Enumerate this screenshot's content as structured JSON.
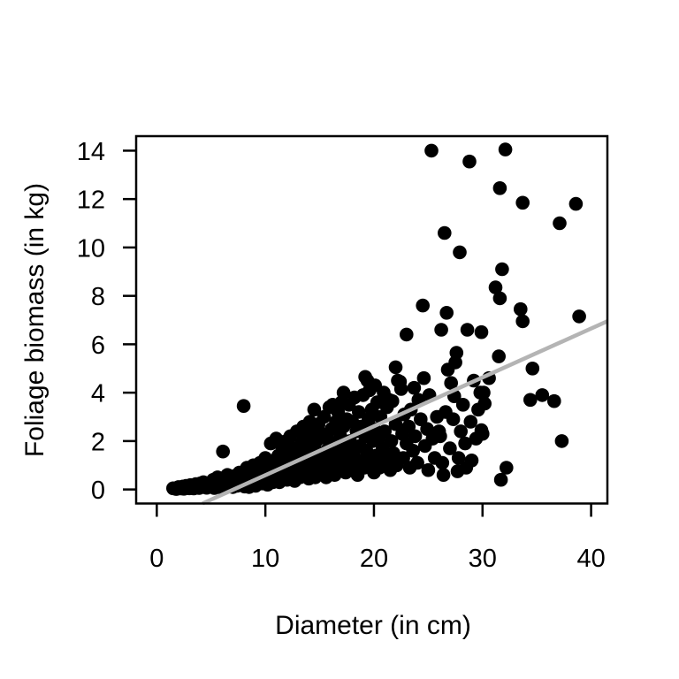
{
  "figure": {
    "background": "#ffffff"
  },
  "chart_data": {
    "type": "scatter",
    "title": "",
    "xlabel": "Diameter (in cm)",
    "ylabel": "Foliage biomass (in kg)",
    "x_ticks": [
      0,
      10,
      20,
      30,
      40
    ],
    "y_ticks": [
      0,
      2,
      4,
      6,
      8,
      10,
      12,
      14
    ],
    "xlim": [
      -1.9,
      41.5
    ],
    "ylim": [
      -0.58,
      14.6
    ],
    "grid": "off",
    "legend": "none",
    "point_color": "#000000",
    "axis_color": "#000000",
    "trend_line": {
      "slope": 0.202,
      "intercept": -1.43,
      "color": "#b4b4b4"
    },
    "points": [
      [
        1.5,
        0.05
      ],
      [
        1.8,
        0.02
      ],
      [
        2.0,
        0.1
      ],
      [
        2.2,
        0.04
      ],
      [
        2.4,
        0.12
      ],
      [
        2.5,
        0.03
      ],
      [
        2.7,
        0.15
      ],
      [
        2.8,
        0.07
      ],
      [
        3.0,
        0.05
      ],
      [
        3.1,
        0.18
      ],
      [
        3.3,
        0.1
      ],
      [
        3.4,
        0.04
      ],
      [
        3.6,
        0.22
      ],
      [
        3.7,
        0.12
      ],
      [
        3.9,
        0.06
      ],
      [
        4.0,
        0.25
      ],
      [
        4.2,
        0.1
      ],
      [
        4.3,
        0.3
      ],
      [
        4.5,
        0.15
      ],
      [
        4.6,
        0.07
      ],
      [
        4.8,
        0.2
      ],
      [
        5.0,
        0.3
      ],
      [
        5.1,
        0.12
      ],
      [
        5.2,
        0.4
      ],
      [
        5.3,
        0.06
      ],
      [
        5.5,
        0.25
      ],
      [
        5.6,
        0.5
      ],
      [
        5.7,
        0.1
      ],
      [
        5.9,
        0.35
      ],
      [
        6.0,
        0.15
      ],
      [
        6.1,
        1.57
      ],
      [
        6.2,
        0.45
      ],
      [
        6.3,
        0.08
      ],
      [
        6.4,
        0.3
      ],
      [
        6.5,
        0.6
      ],
      [
        6.7,
        0.2
      ],
      [
        6.8,
        0.4
      ],
      [
        7.0,
        0.1
      ],
      [
        7.1,
        0.55
      ],
      [
        7.2,
        0.3
      ],
      [
        7.4,
        0.15
      ],
      [
        7.5,
        0.45
      ],
      [
        7.6,
        0.7
      ],
      [
        7.8,
        0.25
      ],
      [
        7.9,
        0.5
      ],
      [
        8.0,
        3.45
      ],
      [
        8.0,
        0.35
      ],
      [
        8.1,
        0.12
      ],
      [
        8.2,
        0.6
      ],
      [
        8.3,
        0.2
      ],
      [
        8.3,
        0.9
      ],
      [
        8.4,
        0.4
      ],
      [
        8.5,
        0.1
      ],
      [
        8.6,
        0.7
      ],
      [
        8.8,
        0.3
      ],
      [
        8.9,
        1.0
      ],
      [
        9.0,
        0.5
      ],
      [
        9.1,
        0.15
      ],
      [
        9.2,
        0.8
      ],
      [
        9.3,
        0.35
      ],
      [
        9.5,
        1.1
      ],
      [
        9.6,
        0.6
      ],
      [
        9.7,
        0.25
      ],
      [
        9.8,
        0.9
      ],
      [
        9.9,
        0.45
      ],
      [
        10.0,
        1.3
      ],
      [
        10.1,
        0.7
      ],
      [
        10.2,
        0.2
      ],
      [
        10.3,
        1.0
      ],
      [
        10.4,
        0.5
      ],
      [
        10.5,
        1.9
      ],
      [
        10.6,
        0.8
      ],
      [
        10.7,
        0.3
      ],
      [
        10.8,
        1.2
      ],
      [
        10.9,
        0.6
      ],
      [
        11.0,
        2.1
      ],
      [
        11.0,
        0.9
      ],
      [
        11.0,
        0.4
      ],
      [
        11.1,
        0.7
      ],
      [
        11.2,
        1.4
      ],
      [
        11.3,
        0.3
      ],
      [
        11.4,
        1.0
      ],
      [
        11.5,
        1.8
      ],
      [
        11.6,
        0.5
      ],
      [
        11.7,
        1.2
      ],
      [
        11.8,
        0.8
      ],
      [
        11.9,
        2.0
      ],
      [
        12.0,
        0.4
      ],
      [
        12.1,
        1.5
      ],
      [
        12.2,
        0.9
      ],
      [
        12.3,
        2.2
      ],
      [
        12.4,
        0.6
      ],
      [
        12.5,
        1.1
      ],
      [
        12.6,
        1.7
      ],
      [
        12.7,
        0.35
      ],
      [
        12.8,
        1.3
      ],
      [
        12.9,
        2.4
      ],
      [
        13.0,
        0.8
      ],
      [
        13.1,
        1.6
      ],
      [
        13.2,
        0.5
      ],
      [
        13.3,
        1.9
      ],
      [
        13.4,
        1.0
      ],
      [
        13.5,
        2.6
      ],
      [
        13.6,
        0.7
      ],
      [
        13.7,
        1.4
      ],
      [
        13.8,
        2.1
      ],
      [
        13.9,
        0.9
      ],
      [
        14.0,
        1.7
      ],
      [
        14.0,
        0.45
      ],
      [
        14.1,
        2.8
      ],
      [
        14.1,
        1.2
      ],
      [
        14.2,
        2.3
      ],
      [
        14.3,
        0.8
      ],
      [
        14.4,
        1.6
      ],
      [
        14.5,
        3.3
      ],
      [
        14.6,
        0.5
      ],
      [
        14.7,
        2.0
      ],
      [
        14.8,
        1.1
      ],
      [
        14.9,
        2.7
      ],
      [
        15.0,
        0.7
      ],
      [
        15.1,
        1.5
      ],
      [
        15.2,
        2.3
      ],
      [
        15.3,
        0.9
      ],
      [
        15.4,
        3.0
      ],
      [
        15.5,
        1.3
      ],
      [
        15.6,
        0.5
      ],
      [
        15.7,
        2.1
      ],
      [
        15.8,
        1.7
      ],
      [
        15.9,
        3.4
      ],
      [
        16.0,
        0.8
      ],
      [
        16.1,
        2.5
      ],
      [
        16.1,
        1.2
      ],
      [
        16.2,
        3.5
      ],
      [
        16.3,
        1.9
      ],
      [
        16.4,
        0.6
      ],
      [
        16.5,
        2.8
      ],
      [
        16.6,
        1.4
      ],
      [
        16.7,
        3.2
      ],
      [
        16.8,
        0.9
      ],
      [
        16.9,
        2.2
      ],
      [
        17.0,
        1.6
      ],
      [
        17.0,
        3.6
      ],
      [
        17.1,
        1.0
      ],
      [
        17.2,
        2.6
      ],
      [
        17.2,
        4.0
      ],
      [
        17.3,
        1.8
      ],
      [
        17.4,
        0.7
      ],
      [
        17.5,
        2.9
      ],
      [
        17.6,
        1.3
      ],
      [
        17.7,
        3.5
      ],
      [
        17.8,
        2.0
      ],
      [
        17.9,
        0.8
      ],
      [
        18.0,
        2.8
      ],
      [
        18.1,
        1.5
      ],
      [
        18.2,
        3.8
      ],
      [
        18.3,
        1.0
      ],
      [
        18.4,
        2.4
      ],
      [
        18.5,
        0.6
      ],
      [
        18.6,
        3.2
      ],
      [
        18.7,
        1.8
      ],
      [
        18.8,
        2.6
      ],
      [
        18.9,
        1.2
      ],
      [
        19.0,
        3.9
      ],
      [
        19.1,
        0.9
      ],
      [
        19.2,
        4.65
      ],
      [
        19.2,
        2.2
      ],
      [
        19.3,
        1.6
      ],
      [
        19.4,
        4.5
      ],
      [
        19.5,
        2.9
      ],
      [
        19.6,
        4.1
      ],
      [
        19.7,
        1.1
      ],
      [
        19.8,
        3.3
      ],
      [
        19.9,
        2.0
      ],
      [
        20.0,
        0.7
      ],
      [
        20.0,
        2.5
      ],
      [
        20.1,
        4.3
      ],
      [
        20.2,
        1.4
      ],
      [
        20.3,
        3.6
      ],
      [
        20.4,
        2.1
      ],
      [
        20.5,
        0.9
      ],
      [
        20.6,
        3.0
      ],
      [
        20.8,
        1.7
      ],
      [
        20.9,
        4.0
      ],
      [
        21.0,
        2.4
      ],
      [
        21.1,
        1.2
      ],
      [
        21.2,
        3.4
      ],
      [
        21.4,
        3.7
      ],
      [
        21.5,
        0.8
      ],
      [
        21.6,
        2.0
      ],
      [
        21.7,
        3.65
      ],
      [
        21.8,
        1.5
      ],
      [
        22.0,
        5.05
      ],
      [
        22.0,
        2.7
      ],
      [
        22.1,
        1.0
      ],
      [
        22.2,
        4.5
      ],
      [
        22.4,
        4.45
      ],
      [
        22.5,
        4.15
      ],
      [
        22.6,
        2.3
      ],
      [
        22.7,
        1.3
      ],
      [
        22.8,
        3.1
      ],
      [
        23.0,
        6.4
      ],
      [
        23.0,
        1.9
      ],
      [
        23.2,
        2.6
      ],
      [
        23.3,
        0.9
      ],
      [
        23.4,
        3.3
      ],
      [
        23.6,
        1.6
      ],
      [
        23.7,
        4.2
      ],
      [
        23.8,
        2.2
      ],
      [
        24.0,
        1.1
      ],
      [
        24.1,
        3.7
      ],
      [
        24.3,
        2.9
      ],
      [
        24.5,
        7.6
      ],
      [
        24.6,
        4.6
      ],
      [
        24.7,
        1.8
      ],
      [
        24.9,
        2.5
      ],
      [
        25.0,
        0.8
      ],
      [
        25.1,
        3.9
      ],
      [
        25.3,
        14.0
      ],
      [
        25.4,
        2.1
      ],
      [
        25.6,
        1.3
      ],
      [
        25.8,
        3.0
      ],
      [
        26.0,
        2.4
      ],
      [
        26.1,
        2.2
      ],
      [
        26.2,
        6.6
      ],
      [
        26.3,
        1.1
      ],
      [
        26.4,
        0.6
      ],
      [
        26.5,
        10.6
      ],
      [
        26.6,
        3.2
      ],
      [
        26.7,
        7.3
      ],
      [
        26.8,
        4.95
      ],
      [
        27.0,
        1.7
      ],
      [
        27.1,
        4.4
      ],
      [
        27.3,
        2.9
      ],
      [
        27.4,
        3.85
      ],
      [
        27.5,
        5.25
      ],
      [
        27.6,
        5.65
      ],
      [
        27.7,
        0.75
      ],
      [
        27.8,
        1.3
      ],
      [
        27.9,
        9.8
      ],
      [
        28.0,
        2.4
      ],
      [
        28.2,
        3.5
      ],
      [
        28.4,
        1.9
      ],
      [
        28.5,
        0.9
      ],
      [
        28.6,
        6.6
      ],
      [
        28.8,
        13.55
      ],
      [
        28.9,
        2.8
      ],
      [
        29.0,
        1.2
      ],
      [
        29.2,
        4.5
      ],
      [
        29.4,
        2.1
      ],
      [
        29.6,
        3.3
      ],
      [
        29.8,
        4.0
      ],
      [
        29.9,
        6.5
      ],
      [
        29.9,
        2.45
      ],
      [
        30.0,
        2.3
      ],
      [
        30.1,
        4.0
      ],
      [
        30.2,
        3.55
      ],
      [
        30.6,
        4.6
      ],
      [
        31.2,
        8.35
      ],
      [
        31.5,
        5.5
      ],
      [
        31.6,
        12.45
      ],
      [
        31.6,
        7.9
      ],
      [
        31.7,
        0.4
      ],
      [
        31.8,
        9.1
      ],
      [
        32.1,
        14.05
      ],
      [
        32.2,
        0.9
      ],
      [
        33.5,
        7.45
      ],
      [
        33.7,
        6.95
      ],
      [
        33.7,
        11.85
      ],
      [
        34.4,
        3.7
      ],
      [
        34.6,
        5.0
      ],
      [
        35.5,
        3.9
      ],
      [
        36.6,
        3.65
      ],
      [
        37.1,
        11.0
      ],
      [
        37.3,
        2.0
      ],
      [
        38.6,
        11.8
      ],
      [
        38.9,
        7.15
      ]
    ]
  }
}
